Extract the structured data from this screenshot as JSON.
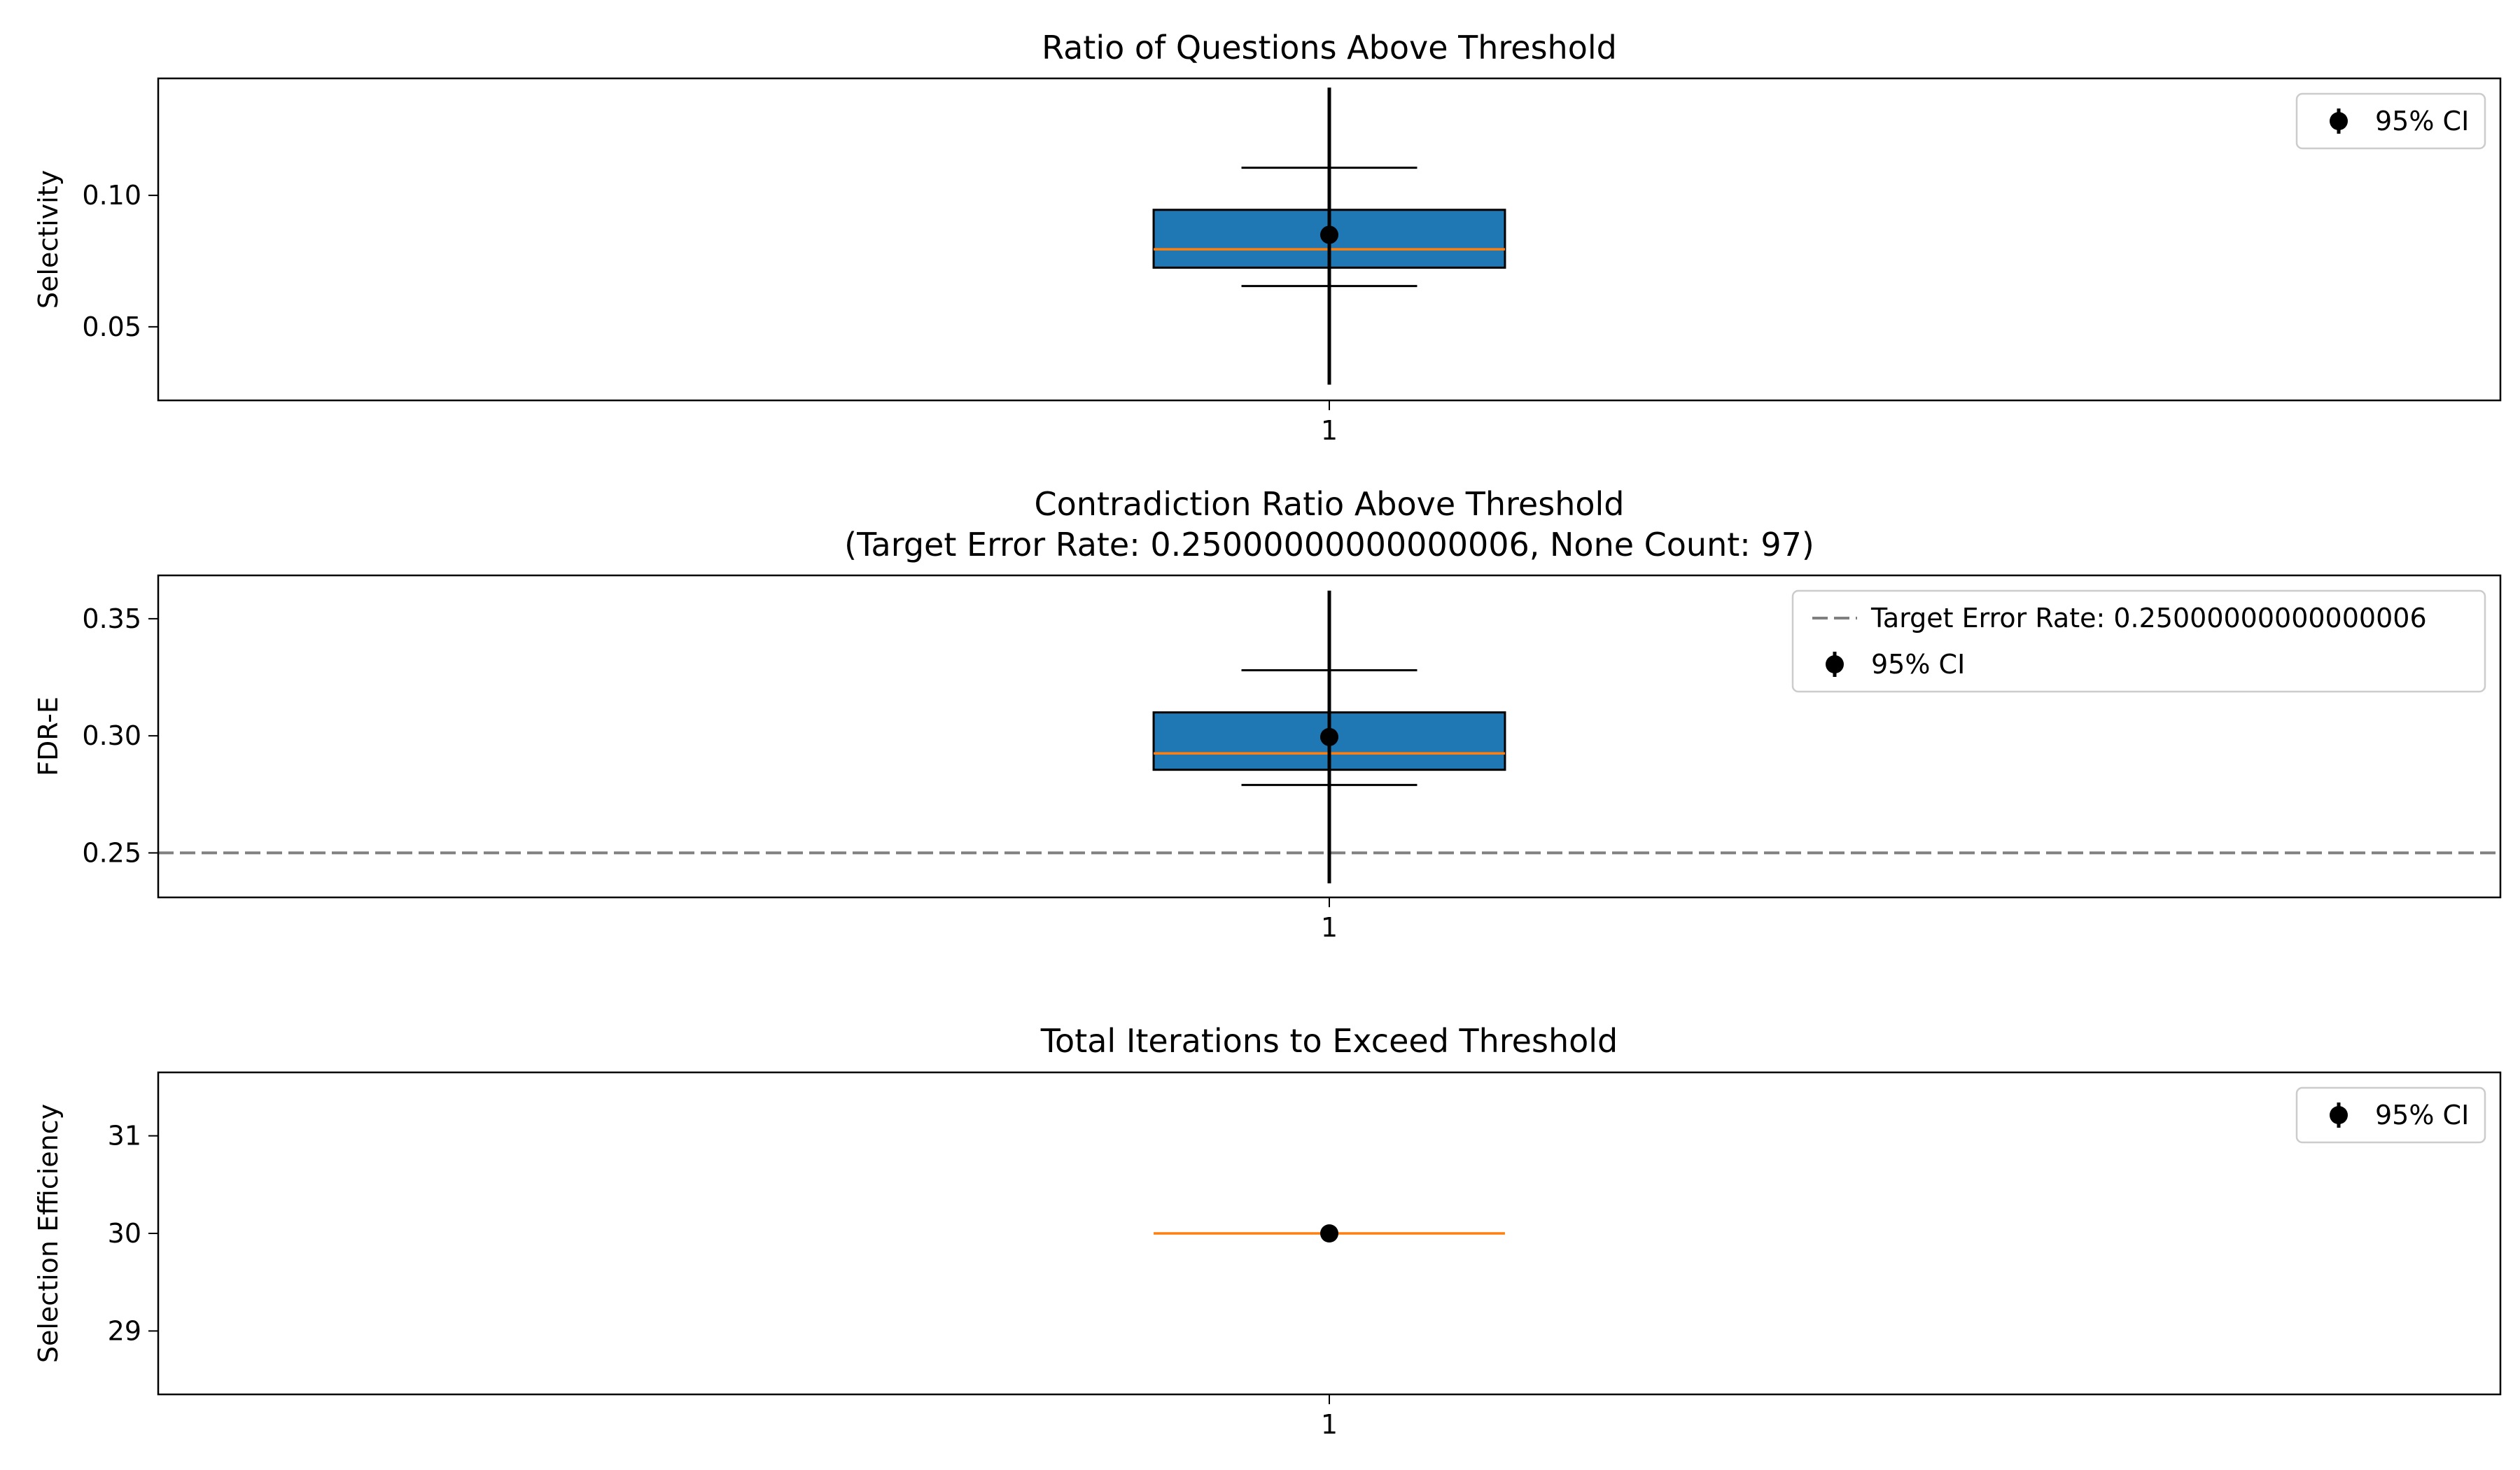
{
  "colors": {
    "box_fill": "#1f77b4",
    "median": "#ff7f0e",
    "target_line": "#808080",
    "point": "#000000"
  },
  "chart_data": [
    {
      "type": "box",
      "title": "Ratio of Questions Above Threshold",
      "title_line2": "",
      "xlabel": "",
      "ylabel": "Selectivity",
      "categories": [
        "1"
      ],
      "xlim": [
        0.5,
        1.5
      ],
      "ylim": [
        0.022,
        0.1445
      ],
      "yticks": [
        0.05,
        0.1
      ],
      "ytick_labels": [
        "0.05",
        "0.10"
      ],
      "box": {
        "position": 1,
        "q1": 0.0725,
        "median": 0.0795,
        "q3": 0.0945,
        "whisker_low": 0.0655,
        "whisker_high": 0.1105,
        "width": 0.15
      },
      "mean_point": {
        "x": 1,
        "y": 0.085,
        "ci_low": 0.028,
        "ci_high": 0.141,
        "label": "95% CI"
      },
      "target_line": null,
      "legend": {
        "position": "upper right",
        "entries": [
          {
            "kind": "errorbar",
            "label": "95% CI"
          }
        ]
      }
    },
    {
      "type": "box",
      "title": "Contradiction Ratio Above Threshold",
      "title_line2": "(Target Error Rate: 0.25000000000000006, None Count: 97)",
      "xlabel": "",
      "ylabel": "FDR-E",
      "categories": [
        "1"
      ],
      "xlim": [
        0.5,
        1.5
      ],
      "ylim": [
        0.231,
        0.3685
      ],
      "yticks": [
        0.25,
        0.3,
        0.35
      ],
      "ytick_labels": [
        "0.25",
        "0.30",
        "0.35"
      ],
      "box": {
        "position": 1,
        "q1": 0.2855,
        "median": 0.2925,
        "q3": 0.31,
        "whisker_low": 0.279,
        "whisker_high": 0.328,
        "width": 0.15
      },
      "mean_point": {
        "x": 1,
        "y": 0.2995,
        "ci_low": 0.237,
        "ci_high": 0.362,
        "label": "95% CI"
      },
      "target_line": {
        "y": 0.25000000000000006,
        "label": "Target Error Rate: 0.25000000000000006"
      },
      "legend": {
        "position": "upper right",
        "entries": [
          {
            "kind": "dashed-line",
            "label": "Target Error Rate: 0.25000000000000006"
          },
          {
            "kind": "errorbar",
            "label": "95% CI"
          }
        ]
      }
    },
    {
      "type": "box",
      "title": "Total Iterations to Exceed Threshold",
      "title_line2": "",
      "xlabel": "",
      "ylabel": "Selection Efficiency",
      "categories": [
        "1"
      ],
      "xlim": [
        0.5,
        1.5
      ],
      "ylim": [
        28.35,
        31.65
      ],
      "yticks": [
        29,
        30,
        31
      ],
      "ytick_labels": [
        "29",
        "30",
        "31"
      ],
      "box": {
        "position": 1,
        "q1": 30,
        "median": 30,
        "q3": 30,
        "whisker_low": 30,
        "whisker_high": 30,
        "width": 0.15
      },
      "mean_point": {
        "x": 1,
        "y": 30,
        "ci_low": 30,
        "ci_high": 30,
        "label": "95% CI"
      },
      "target_line": null,
      "legend": {
        "position": "upper right",
        "entries": [
          {
            "kind": "errorbar",
            "label": "95% CI"
          }
        ]
      }
    }
  ]
}
